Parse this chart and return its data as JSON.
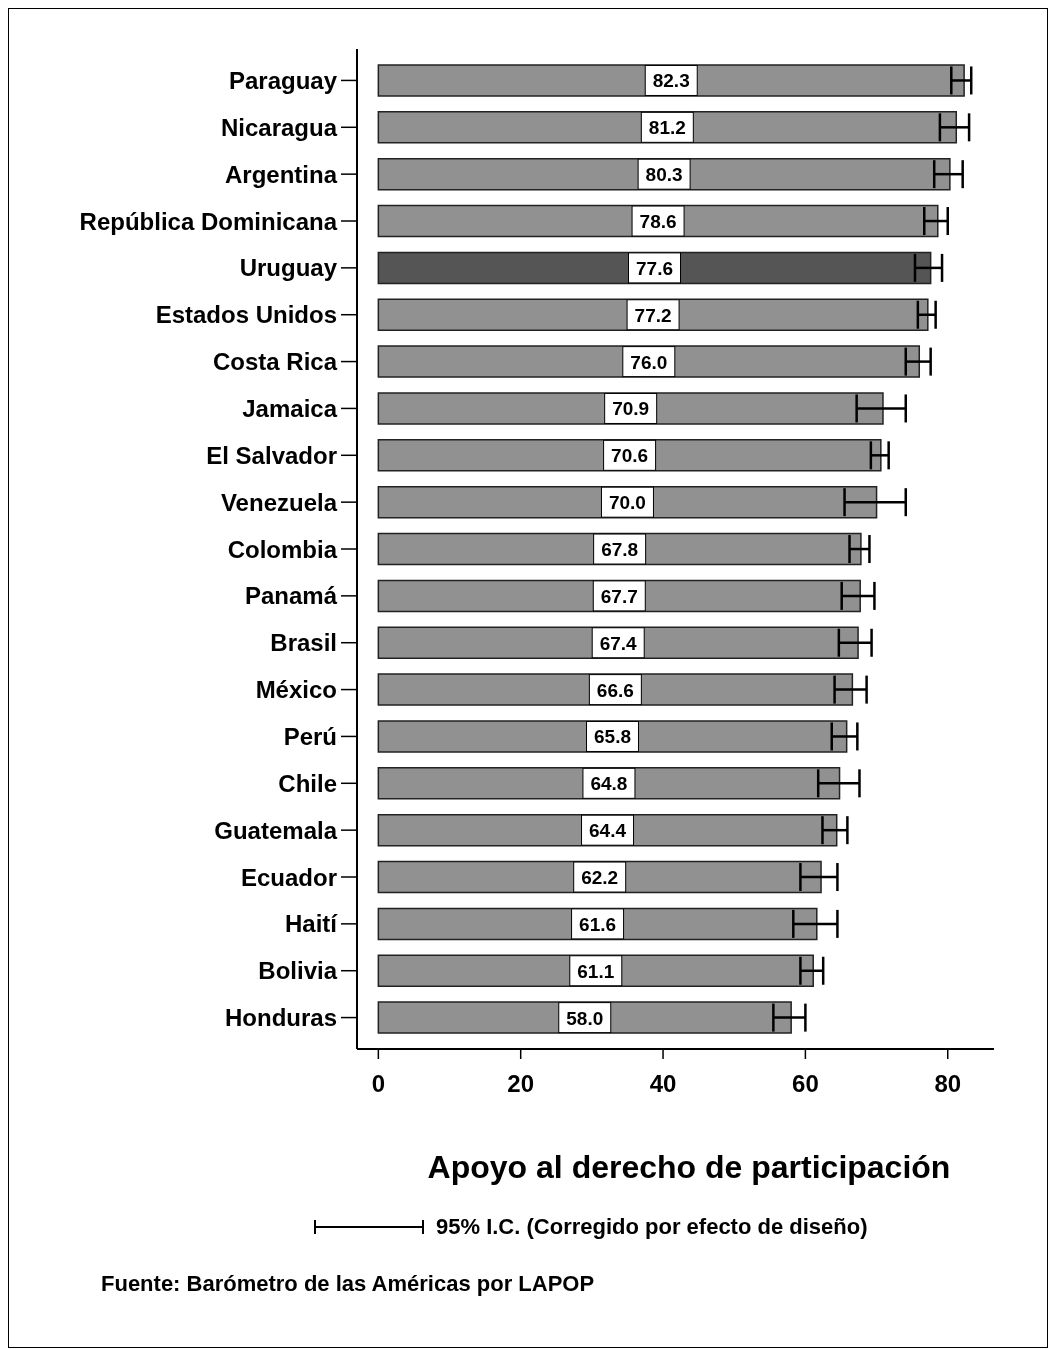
{
  "chart_data": {
    "type": "bar",
    "orientation": "horizontal",
    "xlabel": "Apoyo al derecho de participación",
    "categories": [
      "Paraguay",
      "Nicaragua",
      "Argentina",
      "República Dominicana",
      "Uruguay",
      "Estados Unidos",
      "Costa Rica",
      "Jamaica",
      "El Salvador",
      "Venezuela",
      "Colombia",
      "Panamá",
      "Brasil",
      "México",
      "Perú",
      "Chile",
      "Guatemala",
      "Ecuador",
      "Haití",
      "Bolivia",
      "Honduras"
    ],
    "values": [
      82.3,
      81.2,
      80.3,
      78.6,
      77.6,
      77.2,
      76.0,
      70.9,
      70.6,
      70.0,
      67.8,
      67.7,
      67.4,
      66.6,
      65.8,
      64.8,
      64.4,
      62.2,
      61.6,
      61.1,
      58.0
    ],
    "colors": [
      "#919191",
      "#919191",
      "#919191",
      "#919191",
      "#555555",
      "#919191",
      "#919191",
      "#919191",
      "#919191",
      "#919191",
      "#919191",
      "#919191",
      "#919191",
      "#919191",
      "#919191",
      "#919191",
      "#919191",
      "#919191",
      "#919191",
      "#919191",
      "#919191"
    ],
    "errors": [
      [
        80.5,
        83.3
      ],
      [
        78.9,
        83.0
      ],
      [
        78.1,
        82.1
      ],
      [
        76.7,
        80.0
      ],
      [
        75.4,
        79.2
      ],
      [
        75.8,
        78.3
      ],
      [
        74.1,
        77.6
      ],
      [
        67.2,
        74.1
      ],
      [
        69.2,
        71.7
      ],
      [
        65.5,
        74.1
      ],
      [
        66.2,
        69.0
      ],
      [
        65.1,
        69.7
      ],
      [
        64.7,
        69.3
      ],
      [
        64.1,
        68.6
      ],
      [
        63.7,
        67.3
      ],
      [
        61.8,
        67.6
      ],
      [
        62.4,
        65.9
      ],
      [
        59.3,
        64.5
      ],
      [
        58.3,
        64.5
      ],
      [
        59.3,
        62.5
      ],
      [
        55.5,
        60.0
      ]
    ],
    "value_labels": [
      "82.3",
      "81.2",
      "80.3",
      "78.6",
      "77.6",
      "77.2",
      "76.0",
      "70.9",
      "70.6",
      "70.0",
      "67.8",
      "67.7",
      "67.4",
      "66.6",
      "65.8",
      "64.8",
      "64.4",
      "62.2",
      "61.6",
      "61.1",
      "58.0"
    ],
    "xlim": [
      -3,
      86.5
    ],
    "xticks": [
      0,
      20,
      40,
      60,
      80
    ],
    "grid": false,
    "legend": false,
    "annotations": [
      "95% I.C. (Corregido por efecto de diseño)",
      "Fuente: Barómetro de las Américas por LAPOP"
    ]
  }
}
